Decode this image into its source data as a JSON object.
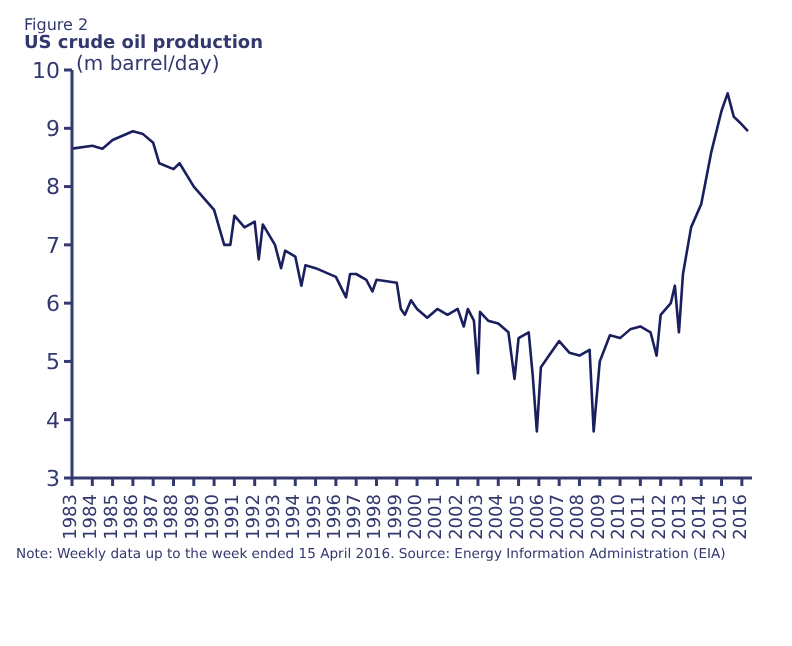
{
  "chart_data": {
    "type": "line",
    "subtitle": "Figure 2",
    "title": "US crude oil production",
    "ylabel": "(m barrel/day)",
    "annotations": [
      "Note: Weekly data up to the week ended 15 April 2016.  Source: Energy Information Administration (EIA)"
    ],
    "x": [
      1983,
      1984,
      1984.5,
      1985,
      1986,
      1986.5,
      1987,
      1987.3,
      1988,
      1988.3,
      1989,
      1990,
      1990.5,
      1990.8,
      1991,
      1991.5,
      1992,
      1992.2,
      1992.4,
      1993,
      1993.3,
      1993.5,
      1994,
      1994.3,
      1994.5,
      1995,
      1996,
      1996.5,
      1996.7,
      1997,
      1997.5,
      1997.8,
      1998,
      1999,
      1999.2,
      1999.4,
      1999.7,
      2000,
      2000.5,
      2001,
      2001.5,
      2002,
      2002.3,
      2002.5,
      2002.8,
      2003,
      2003.1,
      2003.5,
      2004,
      2004.5,
      2004.8,
      2005,
      2005.5,
      2005.7,
      2005.9,
      2006.1,
      2006.5,
      2007,
      2007.5,
      2008,
      2008.5,
      2008.7,
      2009,
      2009.5,
      2010,
      2010.5,
      2011,
      2011.5,
      2011.8,
      2012,
      2012.5,
      2012.7,
      2012.9,
      2013.1,
      2013.5,
      2014,
      2014.5,
      2015,
      2015.3,
      2015.6,
      2015.9,
      2016.3
    ],
    "series": [
      {
        "color": "#1a1f5e",
        "values": [
          8.65,
          8.7,
          8.65,
          8.8,
          8.95,
          8.9,
          8.75,
          8.4,
          8.3,
          8.4,
          8.0,
          7.6,
          7.0,
          7.0,
          7.5,
          7.3,
          7.4,
          6.75,
          7.35,
          7.0,
          6.6,
          6.9,
          6.8,
          6.3,
          6.65,
          6.6,
          6.45,
          6.1,
          6.5,
          6.5,
          6.4,
          6.2,
          6.4,
          6.35,
          5.9,
          5.8,
          6.05,
          5.9,
          5.75,
          5.9,
          5.8,
          5.9,
          5.6,
          5.9,
          5.7,
          4.8,
          5.85,
          5.7,
          5.65,
          5.5,
          4.7,
          5.4,
          5.5,
          4.75,
          3.8,
          4.9,
          5.1,
          5.35,
          5.15,
          5.1,
          5.2,
          3.8,
          5.0,
          5.45,
          5.4,
          5.55,
          5.6,
          5.5,
          5.1,
          5.8,
          6.0,
          6.3,
          5.5,
          6.5,
          7.3,
          7.7,
          8.6,
          9.3,
          9.6,
          9.2,
          9.1,
          8.95
        ]
      }
    ],
    "xlim": [
      1983,
      2016.5
    ],
    "xticks": [
      1983,
      1984,
      1985,
      1986,
      1987,
      1988,
      1989,
      1990,
      1991,
      1992,
      1993,
      1994,
      1995,
      1996,
      1997,
      1998,
      1999,
      2000,
      2001,
      2002,
      2003,
      2004,
      2005,
      2006,
      2007,
      2008,
      2009,
      2010,
      2011,
      2012,
      2013,
      2014,
      2015,
      2016
    ],
    "ylim": [
      3,
      10
    ],
    "yticks": [
      3,
      4,
      5,
      6,
      7,
      8,
      9,
      10
    ],
    "grid": false,
    "legend": false,
    "marker": "none",
    "line_style": "solid"
  }
}
